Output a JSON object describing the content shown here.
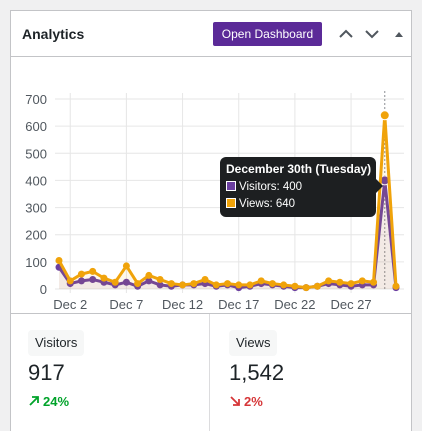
{
  "widget": {
    "title": "Analytics",
    "open_button_label": "Open Dashboard",
    "icons": [
      "chevron-up-icon",
      "chevron-down-icon",
      "caret-up-icon"
    ]
  },
  "tooltip": {
    "title": "December 30th (Tuesday)",
    "visitors_label": "Visitors: 400",
    "views_label": "Views: 640"
  },
  "stats": {
    "visitors": {
      "label": "Visitors",
      "value": "917",
      "change": "24%",
      "direction": "up"
    },
    "views": {
      "label": "Views",
      "value": "1,542",
      "change": "2%",
      "direction": "down"
    }
  },
  "colors": {
    "visitors": "#6b3fa0",
    "views": "#f0a30a",
    "accent": "#5b2a98"
  },
  "chart_data": {
    "type": "line",
    "x": [
      "Dec 1",
      "Dec 2",
      "Dec 3",
      "Dec 4",
      "Dec 5",
      "Dec 6",
      "Dec 7",
      "Dec 8",
      "Dec 9",
      "Dec 10",
      "Dec 11",
      "Dec 12",
      "Dec 13",
      "Dec 14",
      "Dec 15",
      "Dec 16",
      "Dec 17",
      "Dec 18",
      "Dec 19",
      "Dec 20",
      "Dec 21",
      "Dec 22",
      "Dec 23",
      "Dec 24",
      "Dec 25",
      "Dec 26",
      "Dec 27",
      "Dec 28",
      "Dec 29",
      "Dec 30",
      "Dec 31"
    ],
    "x_tick_labels": [
      "Dec 2",
      "Dec 7",
      "Dec 12",
      "Dec 17",
      "Dec 22",
      "Dec 27"
    ],
    "series": [
      {
        "name": "Visitors",
        "values": [
          80,
          20,
          30,
          35,
          25,
          15,
          25,
          10,
          30,
          15,
          10,
          15,
          15,
          20,
          10,
          15,
          5,
          10,
          20,
          15,
          10,
          5,
          5,
          10,
          20,
          15,
          10,
          15,
          15,
          400,
          5
        ]
      },
      {
        "name": "Views",
        "values": [
          105,
          30,
          55,
          65,
          40,
          25,
          85,
          20,
          50,
          35,
          20,
          15,
          20,
          35,
          15,
          20,
          15,
          15,
          30,
          20,
          15,
          10,
          5,
          10,
          30,
          25,
          20,
          30,
          25,
          640,
          10
        ]
      }
    ],
    "ylim": [
      0,
      700
    ],
    "y_ticks": [
      0,
      100,
      200,
      300,
      400,
      500,
      600,
      700
    ],
    "grid": true,
    "highlight_index": 29
  }
}
